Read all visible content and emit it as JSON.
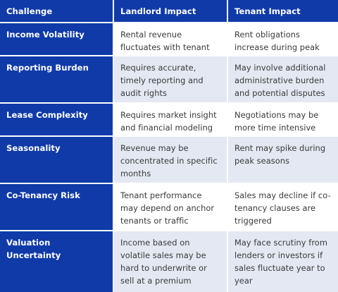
{
  "colors": {
    "header_bg": "#0f3aa8",
    "header_text": "#ffffff",
    "row_shade": "#e3e8f2",
    "row_white": "#ffffff",
    "body_text": "#3a3a3a"
  },
  "table": {
    "headers": [
      "Challenge",
      "Landlord Impact",
      "Tenant Impact"
    ],
    "rows": [
      {
        "challenge": "Income Volatility",
        "landlord": "Rental revenue fluctuates with tenant performance",
        "tenant": "Rent obligations increase during peak sales periods"
      },
      {
        "challenge": "Reporting Burden",
        "landlord": "Requires accurate, timely reporting and audit rights",
        "tenant": "May involve additional administrative burden and potential disputes"
      },
      {
        "challenge": "Lease Complexity",
        "landlord": "Requires market insight and financial modeling",
        "tenant": "Negotiations may be more time intensive"
      },
      {
        "challenge": "Seasonality",
        "landlord": "Revenue may be concentrated in specific months",
        "tenant": "Rent may spike during peak seasons"
      },
      {
        "challenge": "Co-Tenancy Risk",
        "landlord": "Tenant performance may depend on anchor tenants or traffic",
        "tenant": "Sales may decline if co-tenancy clauses are triggered"
      },
      {
        "challenge": "Valuation Uncertainty",
        "landlord": "Income based on volatile sales may be hard to underwrite or sell at a premium",
        "tenant": "May face scrutiny from lenders or investors if sales fluctuate year to year"
      }
    ]
  }
}
